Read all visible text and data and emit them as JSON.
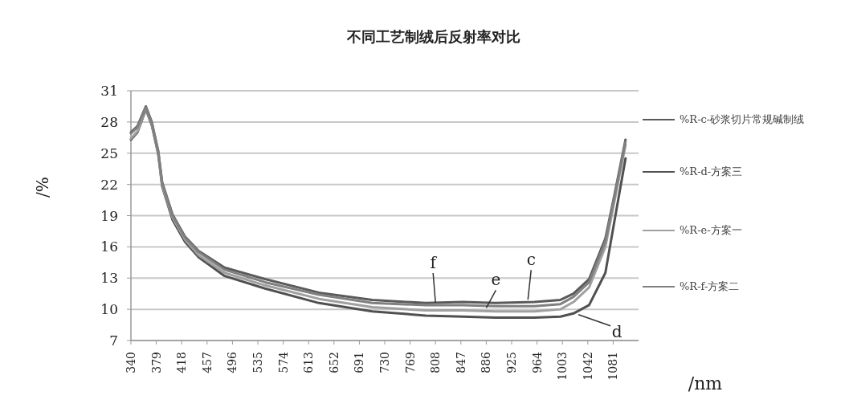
{
  "chart_data": {
    "type": "line",
    "title": "不同工艺制绒后反射率对比",
    "xlabel": "/nm",
    "ylabel": "/%",
    "x": [
      340,
      350,
      363,
      372,
      382,
      388,
      404,
      423,
      444,
      484,
      546,
      629,
      711,
      793,
      850,
      900,
      960,
      1000,
      1020,
      1044,
      1069,
      1083,
      1100
    ],
    "series": [
      {
        "name": "%R-c-砂浆切片常规碱制绒",
        "color": "#5a5a5a",
        "values": [
          27.0,
          27.6,
          29.5,
          28.0,
          25.2,
          22.2,
          19.1,
          17.0,
          15.6,
          14.0,
          12.9,
          11.6,
          10.9,
          10.6,
          10.7,
          10.6,
          10.7,
          10.9,
          11.5,
          12.9,
          16.8,
          21.0,
          26.3
        ]
      },
      {
        "name": "%R-d-方案三",
        "color": "#505050",
        "values": [
          26.3,
          27.0,
          29.2,
          27.7,
          24.9,
          21.8,
          18.6,
          16.5,
          15.0,
          13.2,
          12.0,
          10.6,
          9.8,
          9.4,
          9.3,
          9.2,
          9.2,
          9.3,
          9.6,
          10.4,
          13.5,
          18.5,
          24.5
        ]
      },
      {
        "name": "%R-e-方案一",
        "color": "#a0a0a0",
        "values": [
          26.4,
          27.1,
          29.3,
          27.8,
          25.0,
          21.9,
          18.8,
          16.7,
          15.2,
          13.5,
          12.3,
          11.0,
          10.2,
          9.9,
          9.9,
          9.8,
          9.8,
          10.0,
          10.7,
          12.1,
          16.0,
          20.4,
          25.8
        ]
      },
      {
        "name": "%R-f-方案二",
        "color": "#808080",
        "values": [
          26.9,
          27.5,
          29.4,
          27.9,
          25.1,
          22.1,
          19.0,
          16.9,
          15.5,
          13.8,
          12.6,
          11.4,
          10.6,
          10.4,
          10.4,
          10.3,
          10.3,
          10.5,
          11.2,
          12.6,
          16.5,
          20.8,
          26.1
        ]
      }
    ],
    "xlim": [
      340,
      1120
    ],
    "ylim": [
      7,
      31
    ],
    "xticks": [
      340,
      379,
      418,
      457,
      496,
      535,
      574,
      613,
      652,
      691,
      730,
      769,
      808,
      847,
      886,
      925,
      964,
      1003,
      1042,
      1081
    ],
    "yticks": [
      7,
      10,
      13,
      16,
      19,
      22,
      25,
      28,
      31
    ],
    "grid": "y",
    "legend": "right",
    "marker": "none",
    "line_style": "solid",
    "annotations": [
      {
        "text": "f",
        "x": 808,
        "y": 10.4
      },
      {
        "text": "e",
        "x": 886,
        "y": 9.9
      },
      {
        "text": "c",
        "x": 950,
        "y": 10.7
      },
      {
        "text": "d",
        "x": 1030,
        "y": 9.8
      }
    ]
  }
}
